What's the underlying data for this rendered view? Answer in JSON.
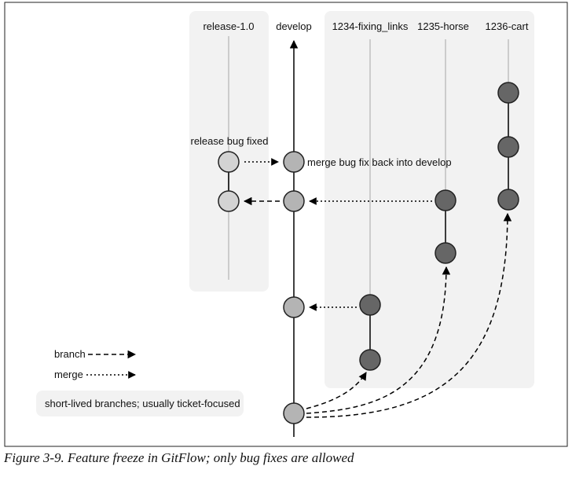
{
  "branches": {
    "release": "release-1.0",
    "develop": "develop",
    "fixing_links": "1234-fixing_links",
    "horse": "1235-horse",
    "cart": "1236-cart"
  },
  "annotations": {
    "release_bug_fixed": "release bug fixed",
    "merge_back": "merge bug fix back into develop"
  },
  "legend": {
    "branch": "branch",
    "merge": "merge",
    "short_lived": "short-lived branches; usually ticket-focused"
  },
  "caption": "Figure 3-9. Feature freeze in GitFlow; only bug fixes are allowed",
  "colors": {
    "light_node": "#d3d3d3",
    "mid_node": "#b4b4b4",
    "dark_node": "#666666",
    "panel": "#f2f2f2",
    "branch_line": "#cccccc"
  }
}
